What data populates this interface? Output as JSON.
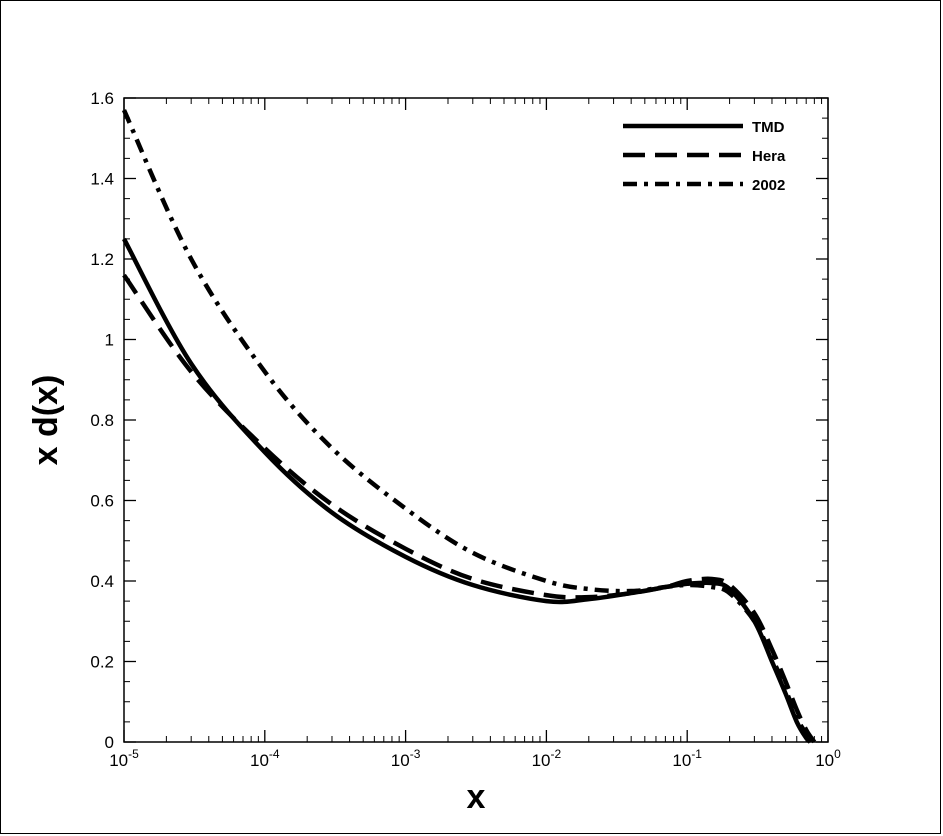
{
  "chart_data": {
    "type": "line",
    "xlabel": "x",
    "ylabel": "x d(x)",
    "x_scale": "log",
    "xlim": [
      1e-05,
      1
    ],
    "ylim": [
      0,
      1.6
    ],
    "x_ticks": [
      {
        "base": "10",
        "exp": "-5",
        "value": 1e-05
      },
      {
        "base": "10",
        "exp": "-4",
        "value": 0.0001
      },
      {
        "base": "10",
        "exp": "-3",
        "value": 0.001
      },
      {
        "base": "10",
        "exp": "-2",
        "value": 0.01
      },
      {
        "base": "10",
        "exp": "-1",
        "value": 0.1
      },
      {
        "base": "10",
        "exp": "0",
        "value": 1
      }
    ],
    "y_ticks": [
      {
        "label": "0",
        "value": 0
      },
      {
        "label": "0.2",
        "value": 0.2
      },
      {
        "label": "0.4",
        "value": 0.4
      },
      {
        "label": "0.6",
        "value": 0.6
      },
      {
        "label": "0.8",
        "value": 0.8
      },
      {
        "label": "1",
        "value": 1
      },
      {
        "label": "1.2",
        "value": 1.2
      },
      {
        "label": "1.4",
        "value": 1.4
      },
      {
        "label": "1.6",
        "value": 1.6
      }
    ],
    "grid": false,
    "legend_position": "top-right",
    "series": [
      {
        "name": "TMD",
        "style": "solid",
        "points": [
          [
            1e-05,
            1.25
          ],
          [
            3e-05,
            0.94
          ],
          [
            0.0001,
            0.72
          ],
          [
            0.0003,
            0.57
          ],
          [
            0.001,
            0.46
          ],
          [
            0.003,
            0.39
          ],
          [
            0.01,
            0.35
          ],
          [
            0.02,
            0.355
          ],
          [
            0.04,
            0.37
          ],
          [
            0.07,
            0.385
          ],
          [
            0.1,
            0.393
          ],
          [
            0.15,
            0.395
          ],
          [
            0.2,
            0.38
          ],
          [
            0.3,
            0.3
          ],
          [
            0.4,
            0.2
          ],
          [
            0.5,
            0.12
          ],
          [
            0.6,
            0.05
          ],
          [
            0.7,
            0.01
          ],
          [
            0.75,
            0.0
          ]
        ]
      },
      {
        "name": "Hera",
        "style": "dashed",
        "points": [
          [
            1e-05,
            1.16
          ],
          [
            3e-05,
            0.92
          ],
          [
            0.0001,
            0.73
          ],
          [
            0.0003,
            0.59
          ],
          [
            0.001,
            0.48
          ],
          [
            0.003,
            0.405
          ],
          [
            0.01,
            0.365
          ],
          [
            0.02,
            0.36
          ],
          [
            0.04,
            0.37
          ],
          [
            0.07,
            0.385
          ],
          [
            0.1,
            0.4
          ],
          [
            0.15,
            0.405
          ],
          [
            0.2,
            0.39
          ],
          [
            0.3,
            0.32
          ],
          [
            0.4,
            0.23
          ],
          [
            0.5,
            0.15
          ],
          [
            0.6,
            0.08
          ],
          [
            0.7,
            0.03
          ],
          [
            0.8,
            0.0
          ]
        ]
      },
      {
        "name": "2002",
        "style": "dashdot",
        "points": [
          [
            1e-05,
            1.57
          ],
          [
            3e-05,
            1.2
          ],
          [
            0.0001,
            0.92
          ],
          [
            0.0003,
            0.73
          ],
          [
            0.001,
            0.58
          ],
          [
            0.003,
            0.47
          ],
          [
            0.01,
            0.4
          ],
          [
            0.02,
            0.38
          ],
          [
            0.04,
            0.375
          ],
          [
            0.07,
            0.385
          ],
          [
            0.1,
            0.39
          ],
          [
            0.15,
            0.385
          ],
          [
            0.2,
            0.37
          ],
          [
            0.3,
            0.3
          ],
          [
            0.4,
            0.21
          ],
          [
            0.5,
            0.13
          ],
          [
            0.6,
            0.06
          ],
          [
            0.7,
            0.02
          ],
          [
            0.75,
            0.0
          ]
        ]
      }
    ]
  }
}
